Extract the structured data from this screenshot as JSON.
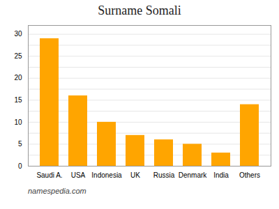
{
  "chart_data": {
    "type": "bar",
    "title": "Surname Somali",
    "caption": "namespedia.com",
    "categories": [
      "Saudi A.",
      "USA",
      "Indonesia",
      "UK",
      "Russia",
      "Denmark",
      "India",
      "Others"
    ],
    "values": [
      29,
      16,
      10,
      7,
      6,
      5,
      3,
      14
    ],
    "color": "#FFA500",
    "ylim": [
      0,
      32
    ],
    "yticks": [
      0,
      {
        "value": 2.5,
        "label": ""
      },
      5,
      {
        "value": 7.5,
        "label": ""
      },
      10,
      {
        "value": 12.5,
        "label": ""
      },
      15,
      {
        "value": 17.5,
        "label": ""
      },
      20,
      {
        "value": 22.5,
        "label": ""
      },
      25,
      {
        "value": 27.5,
        "label": ""
      },
      30
    ],
    "grid": true
  }
}
